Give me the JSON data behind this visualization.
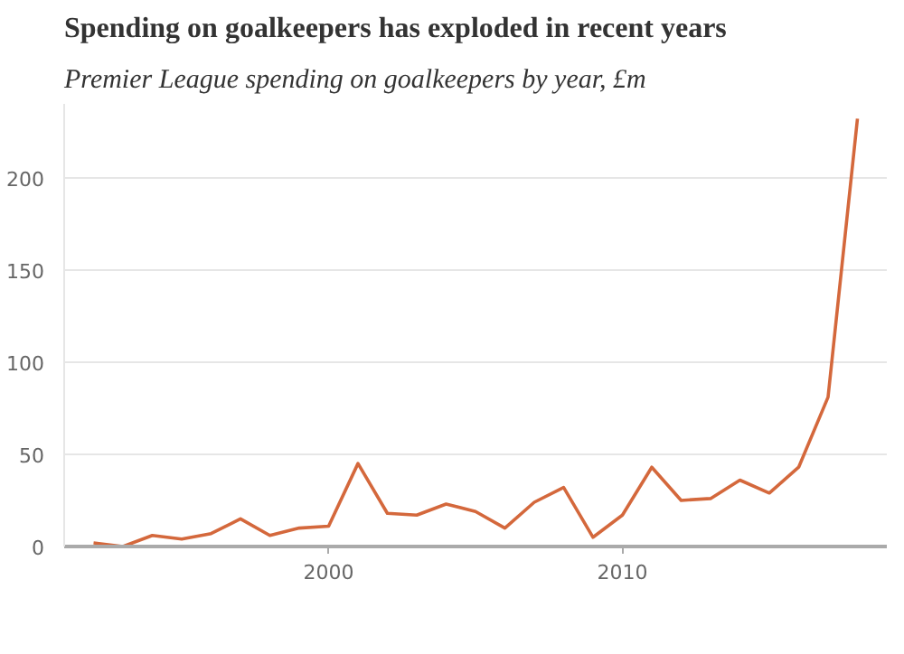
{
  "chart_data": {
    "type": "line",
    "title": "Spending on goalkeepers has exploded in recent years",
    "subtitle": "Premier League spending on goalkeepers by year, £m",
    "x": [
      1992,
      1993,
      1994,
      1995,
      1996,
      1997,
      1998,
      1999,
      2000,
      2001,
      2002,
      2003,
      2004,
      2005,
      2006,
      2007,
      2008,
      2009,
      2010,
      2011,
      2012,
      2013,
      2014,
      2015,
      2016,
      2017,
      2018
    ],
    "series": [
      {
        "color": "#d4683c",
        "values": [
          2,
          0,
          6,
          4,
          7,
          15,
          6,
          10,
          11,
          45,
          18,
          17,
          23,
          19,
          10,
          24,
          32,
          5,
          17,
          43,
          25,
          26,
          36,
          29,
          43,
          81,
          232
        ]
      }
    ],
    "xlim": [
      1991,
      2019
    ],
    "xticks": [
      2000,
      2010
    ],
    "ylim": [
      0,
      240
    ],
    "yticks": [
      0,
      50,
      100,
      150,
      200
    ],
    "grid": "y"
  }
}
